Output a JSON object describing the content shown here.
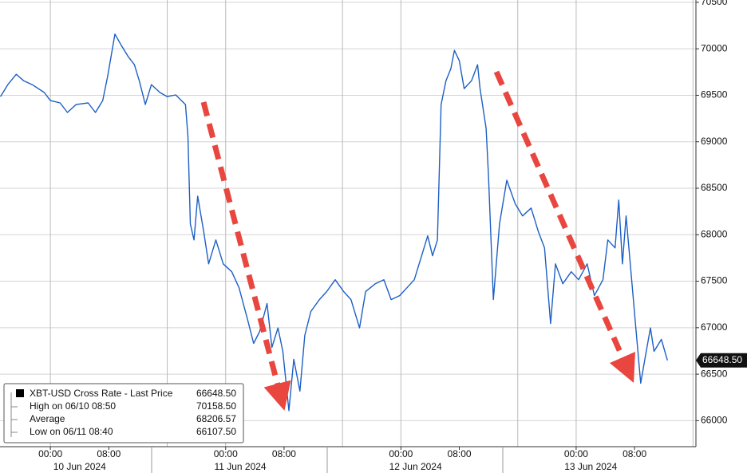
{
  "chart_data": {
    "type": "line",
    "x": [
      "2024-06-09T17:10",
      "2024-06-09T18:10",
      "2024-06-09T19:20",
      "2024-06-09T20:20",
      "2024-06-09T21:30",
      "2024-06-09T23:10",
      "2024-06-10T00:00",
      "2024-06-10T01:20",
      "2024-06-10T02:20",
      "2024-06-10T03:30",
      "2024-06-10T05:10",
      "2024-06-10T06:10",
      "2024-06-10T07:10",
      "2024-06-10T07:50",
      "2024-06-10T08:50",
      "2024-06-10T09:40",
      "2024-06-10T10:40",
      "2024-06-10T11:30",
      "2024-06-10T12:10",
      "2024-06-10T13:00",
      "2024-06-10T13:50",
      "2024-06-10T15:00",
      "2024-06-10T16:00",
      "2024-06-10T17:10",
      "2024-06-10T18:30",
      "2024-06-10T18:50",
      "2024-06-10T19:10",
      "2024-06-10T19:40",
      "2024-06-10T20:10",
      "2024-06-10T21:00",
      "2024-06-10T21:40",
      "2024-06-10T22:40",
      "2024-06-10T23:40",
      "2024-06-11T00:50",
      "2024-06-11T01:50",
      "2024-06-11T03:00",
      "2024-06-11T03:50",
      "2024-06-11T04:40",
      "2024-06-11T05:40",
      "2024-06-11T06:20",
      "2024-06-11T07:10",
      "2024-06-11T07:50",
      "2024-06-11T08:40",
      "2024-06-11T09:20",
      "2024-06-11T10:10",
      "2024-06-11T10:50",
      "2024-06-11T11:40",
      "2024-06-11T12:50",
      "2024-06-11T13:50",
      "2024-06-11T15:00",
      "2024-06-11T16:10",
      "2024-06-11T17:10",
      "2024-06-11T18:20",
      "2024-06-11T19:10",
      "2024-06-11T20:30",
      "2024-06-11T21:40",
      "2024-06-11T22:40",
      "2024-06-11T23:50",
      "2024-06-12T00:50",
      "2024-06-12T01:50",
      "2024-06-12T02:50",
      "2024-06-12T03:40",
      "2024-06-12T04:20",
      "2024-06-12T05:00",
      "2024-06-12T05:30",
      "2024-06-12T06:10",
      "2024-06-12T06:50",
      "2024-06-12T07:20",
      "2024-06-12T08:00",
      "2024-06-12T08:40",
      "2024-06-12T09:40",
      "2024-06-12T10:30",
      "2024-06-12T10:50",
      "2024-06-12T11:40",
      "2024-06-12T12:00",
      "2024-06-12T12:40",
      "2024-06-12T13:30",
      "2024-06-12T14:30",
      "2024-06-12T15:40",
      "2024-06-12T16:40",
      "2024-06-12T17:50",
      "2024-06-12T18:50",
      "2024-06-12T19:40",
      "2024-06-12T20:30",
      "2024-06-12T21:10",
      "2024-06-12T22:10",
      "2024-06-12T23:20",
      "2024-06-13T00:20",
      "2024-06-13T01:30",
      "2024-06-13T02:30",
      "2024-06-13T03:40",
      "2024-06-13T04:20",
      "2024-06-13T05:20",
      "2024-06-13T05:50",
      "2024-06-13T06:20",
      "2024-06-13T06:50",
      "2024-06-13T07:30",
      "2024-06-13T08:10",
      "2024-06-13T08:50",
      "2024-06-13T09:30",
      "2024-06-13T10:10",
      "2024-06-13T10:40",
      "2024-06-13T11:40",
      "2024-06-13T12:30"
    ],
    "series": [
      {
        "name": "XBT-USD Cross Rate - Last Price",
        "color": "#1d5fc4",
        "values": [
          69486,
          69615,
          69726,
          69657,
          69615,
          69530,
          69443,
          69418,
          69315,
          69400,
          69418,
          69315,
          69443,
          69700,
          70158.5,
          70043,
          69915,
          69829,
          69657,
          69400,
          69615,
          69530,
          69486,
          69504,
          69400,
          69058,
          68116,
          67944,
          68415,
          68030,
          67687,
          67944,
          67687,
          67602,
          67430,
          67088,
          66831,
          66960,
          67259,
          66788,
          66998,
          66745,
          66107.5,
          66660,
          66317,
          66917,
          67174,
          67302,
          67388,
          67516,
          67388,
          67302,
          66998,
          67388,
          67473,
          67516,
          67302,
          67345,
          67430,
          67516,
          67773,
          67988,
          67773,
          67944,
          69400,
          69657,
          69786,
          69983,
          69872,
          69572,
          69657,
          69829,
          69572,
          69144,
          68630,
          67302,
          68116,
          68587,
          68330,
          68202,
          68287,
          68030,
          67858,
          67045,
          67687,
          67473,
          67602,
          67516,
          67687,
          67345,
          67516,
          67944,
          67858,
          68373,
          67687,
          68202,
          67602,
          66998,
          66403,
          66703,
          66998,
          66745,
          66874,
          66648.5
        ]
      }
    ],
    "xlim": [
      "2024-06-09T17:06",
      "2024-06-13T16:24"
    ],
    "xticks": [
      {
        "value": "2024-06-10T00:00",
        "label": "00:00"
      },
      {
        "value": "2024-06-10T08:00",
        "label": "08:00"
      },
      {
        "value": "2024-06-11T00:00",
        "label": "00:00"
      },
      {
        "value": "2024-06-11T08:00",
        "label": "08:00"
      },
      {
        "value": "2024-06-12T00:00",
        "label": "00:00"
      },
      {
        "value": "2024-06-12T08:00",
        "label": "08:00"
      },
      {
        "value": "2024-06-13T00:00",
        "label": "00:00"
      },
      {
        "value": "2024-06-13T08:00",
        "label": "08:00"
      }
    ],
    "xdate_labels": [
      {
        "value": "2024-06-10T04:00",
        "label": "10 Jun 2024"
      },
      {
        "value": "2024-06-11T02:00",
        "label": "11 Jun 2024"
      },
      {
        "value": "2024-06-12T02:00",
        "label": "12 Jun 2024"
      },
      {
        "value": "2024-06-13T02:00",
        "label": "13 Jun 2024"
      }
    ],
    "xgrid": [
      "2024-06-10T00:00",
      "2024-06-10T16:00",
      "2024-06-11T00:00",
      "2024-06-11T16:00",
      "2024-06-12T00:00",
      "2024-06-12T16:00",
      "2024-06-13T00:00",
      "2024-06-13T16:00"
    ],
    "ylim": [
      65720,
      70525
    ],
    "yticks": [
      66000,
      66500,
      67000,
      67500,
      68000,
      68500,
      69000,
      69500,
      70000,
      70500
    ],
    "grid": true,
    "last_price_tag": {
      "value": 66648.5,
      "label": "66648.50"
    },
    "legend_value": {
      "value": 66648.5,
      "label": "66648.50"
    },
    "stats": [
      {
        "name": "High on 06/10 08:50",
        "value": 70158.5,
        "label": "70158.50"
      },
      {
        "name": "Average",
        "value": 68206.57,
        "label": "68206.57"
      },
      {
        "name": "Low on 06/11 08:40",
        "value": 66107.5,
        "label": "66107.50"
      }
    ]
  }
}
